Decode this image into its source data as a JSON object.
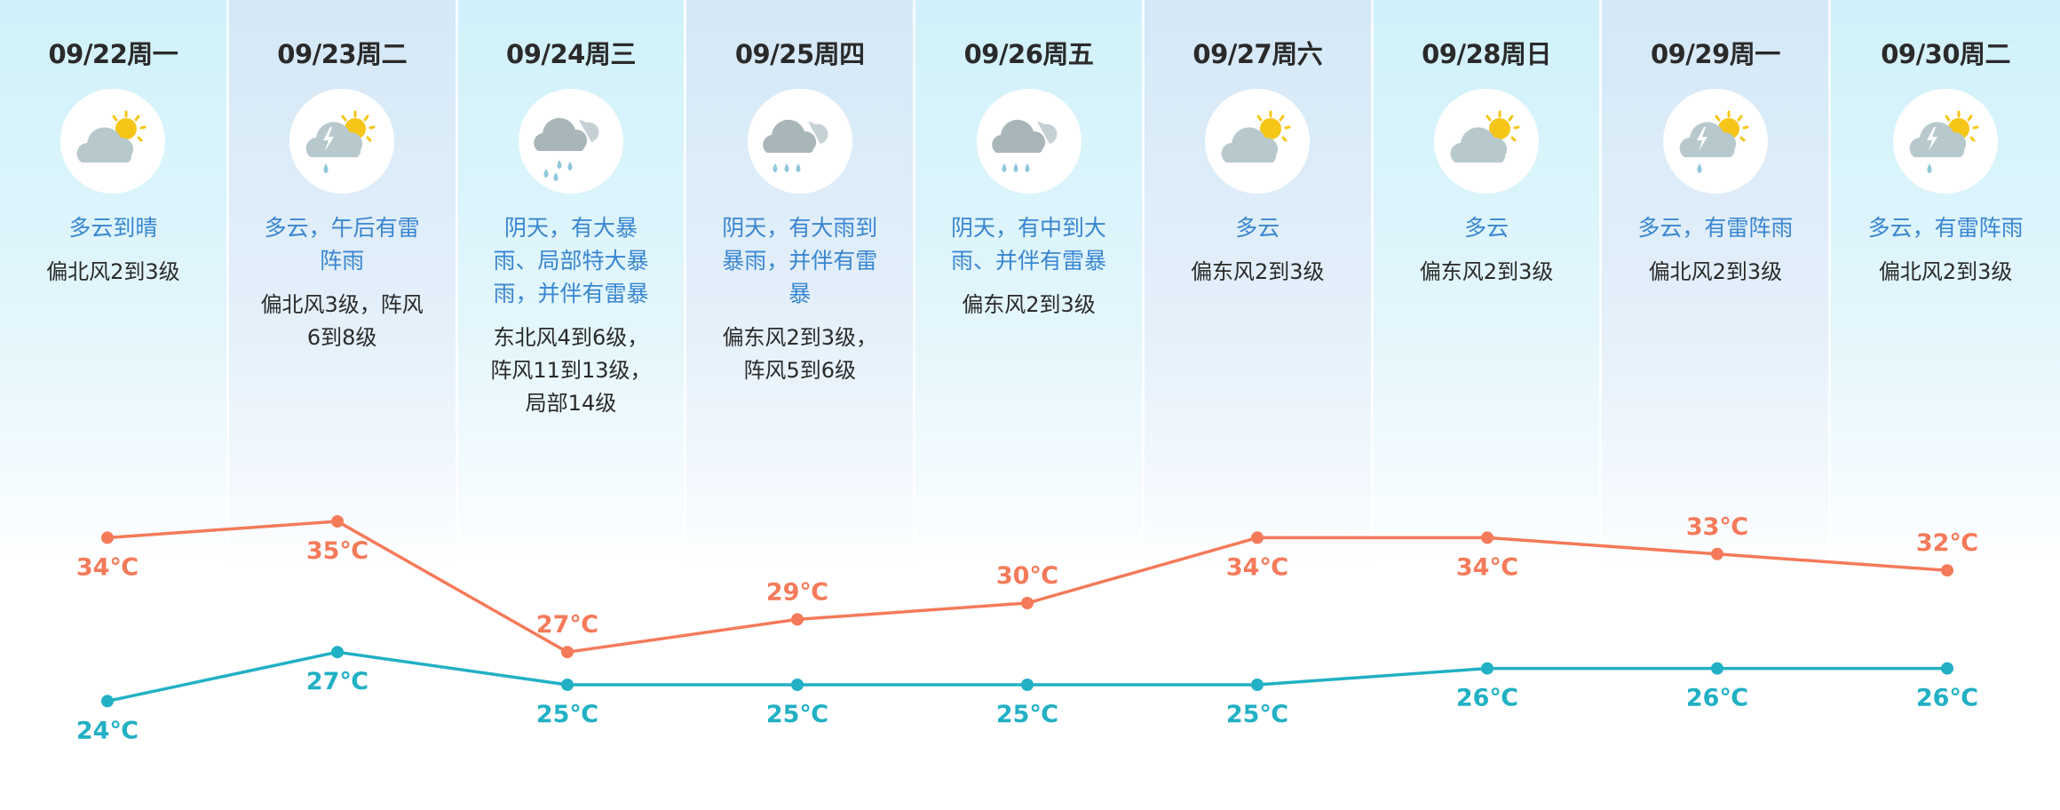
{
  "days": [
    {
      "date": "09/22周一",
      "icon": "partly-cloudy-icon",
      "desc_lines": [
        "多云到晴"
      ],
      "wind_lines": [
        "偏北风2到3级"
      ]
    },
    {
      "date": "09/23周二",
      "icon": "thunder-shower-icon",
      "desc_lines": [
        "多云，午后有雷",
        "阵雨"
      ],
      "wind_lines": [
        "偏北风3级，阵风",
        "6到8级"
      ]
    },
    {
      "date": "09/24周三",
      "icon": "heavy-rain-icon",
      "desc_lines": [
        "阴天，有大暴",
        "雨、局部特大暴",
        "雨，并伴有雷暴"
      ],
      "wind_lines": [
        "东北风4到6级，",
        "阵风11到13级，",
        "局部14级"
      ]
    },
    {
      "date": "09/25周四",
      "icon": "rain-icon",
      "desc_lines": [
        "阴天，有大雨到",
        "暴雨，并伴有雷",
        "暴"
      ],
      "wind_lines": [
        "偏东风2到3级，",
        "阵风5到6级"
      ]
    },
    {
      "date": "09/26周五",
      "icon": "rain-icon",
      "desc_lines": [
        "阴天，有中到大",
        "雨、并伴有雷暴"
      ],
      "wind_lines": [
        "偏东风2到3级"
      ]
    },
    {
      "date": "09/27周六",
      "icon": "partly-cloudy-icon",
      "desc_lines": [
        "多云"
      ],
      "wind_lines": [
        "偏东风2到3级"
      ]
    },
    {
      "date": "09/28周日",
      "icon": "partly-cloudy-icon",
      "desc_lines": [
        "多云"
      ],
      "wind_lines": [
        "偏东风2到3级"
      ]
    },
    {
      "date": "09/29周一",
      "icon": "thunder-shower-icon",
      "desc_lines": [
        "多云，有雷阵雨"
      ],
      "wind_lines": [
        "偏北风2到3级"
      ]
    },
    {
      "date": "09/30周二",
      "icon": "thunder-shower-icon",
      "desc_lines": [
        "多云，有雷阵雨"
      ],
      "wind_lines": [
        "偏北风2到3级"
      ]
    }
  ],
  "chart_data": {
    "type": "line",
    "categories": [
      "09/22",
      "09/23",
      "09/24",
      "09/25",
      "09/26",
      "09/27",
      "09/28",
      "09/29",
      "09/30"
    ],
    "unit": "℃",
    "series": [
      {
        "key": "high",
        "values": [
          34,
          35,
          27,
          29,
          30,
          34,
          34,
          33,
          32
        ],
        "color": "#f47a5a"
      },
      {
        "key": "low",
        "values": [
          24,
          27,
          25,
          25,
          25,
          25,
          26,
          26,
          26
        ],
        "color": "#22b0c4"
      }
    ]
  },
  "colors": {
    "desc_text": "#3a86d0",
    "date_text": "#2a2a2a",
    "high": "#f47a5a",
    "low": "#22b0c4"
  }
}
